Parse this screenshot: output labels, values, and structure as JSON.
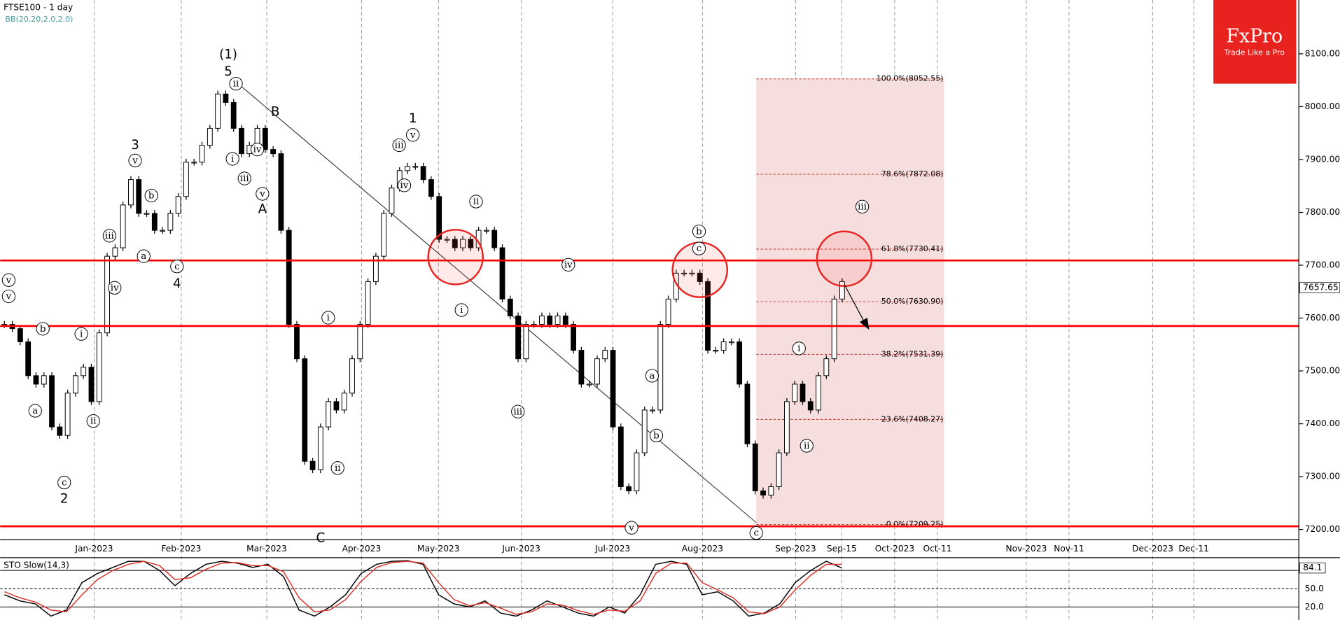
{
  "chart_data": {
    "type": "candlestick",
    "title": "FTSE100 - 1 day",
    "subtitle": "BB(20,20,2.0,2.0)",
    "values": [
      7588,
      7580,
      7555,
      7491,
      7475,
      7491,
      7394,
      7378,
      7458,
      7491,
      7507,
      7442,
      7572,
      7717,
      7733,
      7814,
      7862,
      7798,
      7798,
      7766,
      7766,
      7798,
      7830,
      7895,
      7895,
      7927,
      7959,
      8024,
      8008,
      7959,
      7911,
      7927,
      7959,
      7919,
      7911,
      7766,
      7588,
      7523,
      7329,
      7313,
      7394,
      7442,
      7426,
      7458,
      7523,
      7588,
      7669,
      7717,
      7798,
      7846,
      7879,
      7887,
      7887,
      7862,
      7830,
      7749,
      7749,
      7733,
      7749,
      7733,
      7766,
      7766,
      7733,
      7636,
      7604,
      7523,
      7588,
      7588,
      7604,
      7588,
      7604,
      7588,
      7539,
      7475,
      7475,
      7523,
      7539,
      7394,
      7281,
      7273,
      7345,
      7426,
      7426,
      7588,
      7636,
      7685,
      7685,
      7685,
      7669,
      7539,
      7539,
      7555,
      7555,
      7475,
      7362,
      7273,
      7265,
      7281,
      7345,
      7442,
      7475,
      7442,
      7426,
      7491,
      7523,
      7636,
      7669
    ],
    "up_color": "#ffffff",
    "down_color": "#000000",
    "ylim": [
      7180.6,
      8201.8
    ],
    "yticks": [
      {
        "value": 7200,
        "label": "7200.00"
      },
      {
        "value": 7300,
        "label": "7300.00"
      },
      {
        "value": 7400,
        "label": "7400.00"
      },
      {
        "value": 7500,
        "label": "7500.00"
      },
      {
        "value": 7600,
        "label": "7600.00"
      },
      {
        "value": 7700,
        "label": "7700.00"
      },
      {
        "value": 7800,
        "label": "7800.00"
      },
      {
        "value": 7900,
        "label": "7900.00"
      },
      {
        "value": 8000,
        "label": "8000.00"
      },
      {
        "value": 8100,
        "label": "8100.00"
      }
    ],
    "last_price": 7657.65,
    "x_labels": [
      "Jan-2023",
      "Feb-2023",
      "Mar-2023",
      "Apr-2023",
      "May-2023",
      "Jun-2023",
      "Jul-2023",
      "Aug-2023",
      "Sep-2023",
      "Sep-15",
      "Oct-2023",
      "Oct-11",
      "Nov-2023",
      "Nov-11",
      "Dec-2023",
      "Dec-11"
    ],
    "grid": true,
    "levels": [
      7709,
      7585,
      7206
    ],
    "level_color": "#ff0000",
    "fib_levels": [
      {
        "value": 8052.55,
        "label": "100.0%(8052.55)"
      },
      {
        "value": 7872.08,
        "label": "78.6%(7872.08)"
      },
      {
        "value": 7730.41,
        "label": "61.8%(7730.41)"
      },
      {
        "value": 7630.9,
        "label": "50.0%(7630.90)"
      },
      {
        "value": 7531.39,
        "label": "38.2%(7531.39)"
      },
      {
        "value": 7408.27,
        "label": "23.6%(7408.27)"
      },
      {
        "value": 7209.25,
        "label": "0.0%(7209.25)"
      }
    ],
    "wave_labels": [
      "v",
      "v",
      "b",
      "a",
      "c",
      "2",
      "i",
      "ii",
      "iii",
      "iv",
      "a",
      "3",
      "v",
      "b",
      "c",
      "4",
      "(1)",
      "5",
      "ii",
      "i",
      "iii",
      "iv",
      "v",
      "A",
      "B",
      "1",
      "v",
      "iii",
      "iv",
      "ii",
      "i",
      "iv",
      "iii",
      "i",
      "ii",
      "C",
      "a",
      "b",
      "v",
      "b",
      "c",
      "c",
      "i",
      "ii",
      "iii"
    ],
    "indicator": {
      "name": "STO Slow(14,3)",
      "ylim": [
        0,
        100
      ],
      "yticks": [
        {
          "value": 80,
          "label": "80.0"
        },
        {
          "value": 50,
          "label": "50.0"
        },
        {
          "value": 20,
          "label": "20.0"
        }
      ],
      "last_value": 84.1,
      "series": [
        {
          "color": "#000000",
          "values": [
            40,
            30,
            25,
            5,
            15,
            60,
            75,
            85,
            95,
            95,
            80,
            55,
            75,
            90,
            95,
            92,
            85,
            90,
            70,
            15,
            5,
            20,
            40,
            75,
            90,
            95,
            96,
            90,
            40,
            25,
            20,
            30,
            10,
            5,
            15,
            30,
            20,
            10,
            5,
            20,
            10,
            40,
            90,
            95,
            90,
            40,
            45,
            30,
            5,
            10,
            25,
            60,
            80,
            95,
            84.1
          ]
        },
        {
          "color": "#e0302a",
          "values": [
            45,
            35,
            28,
            15,
            12,
            40,
            65,
            80,
            90,
            95,
            88,
            65,
            68,
            82,
            92,
            93,
            88,
            88,
            78,
            35,
            12,
            15,
            32,
            62,
            85,
            93,
            95,
            92,
            60,
            32,
            22,
            27,
            18,
            8,
            12,
            25,
            23,
            14,
            8,
            15,
            13,
            30,
            75,
            92,
            92,
            60,
            48,
            35,
            12,
            9,
            20,
            48,
            72,
            90,
            90
          ]
        }
      ]
    }
  },
  "logo": {
    "brand": "FxPro",
    "tagline": "Trade Like a Pro"
  }
}
